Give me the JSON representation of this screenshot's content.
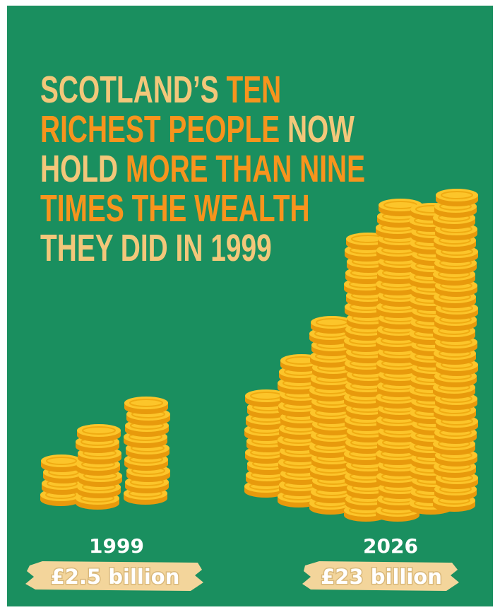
{
  "headline": [
    [
      {
        "text": "SCOTLAND’S ",
        "accent": false
      },
      {
        "text": "TEN",
        "accent": true
      }
    ],
    [
      {
        "text": "RICHEST PEOPLE ",
        "accent": true
      },
      {
        "text": "NOW",
        "accent": false
      }
    ],
    [
      {
        "text": "HOLD ",
        "accent": false
      },
      {
        "text": "MORE THAN NINE",
        "accent": true
      }
    ],
    [
      {
        "text": "TIMES THE WEALTH",
        "accent": true
      }
    ],
    [
      {
        "text": "THEY DID IN 1999",
        "accent": false
      }
    ]
  ],
  "colors": {
    "plain": "#f3c77a",
    "accent": "#f7941d"
  },
  "panels": [
    {
      "year": "1999",
      "amount": "£2.5 billion"
    },
    {
      "year": "2026",
      "amount": "£23 billion"
    }
  ]
}
